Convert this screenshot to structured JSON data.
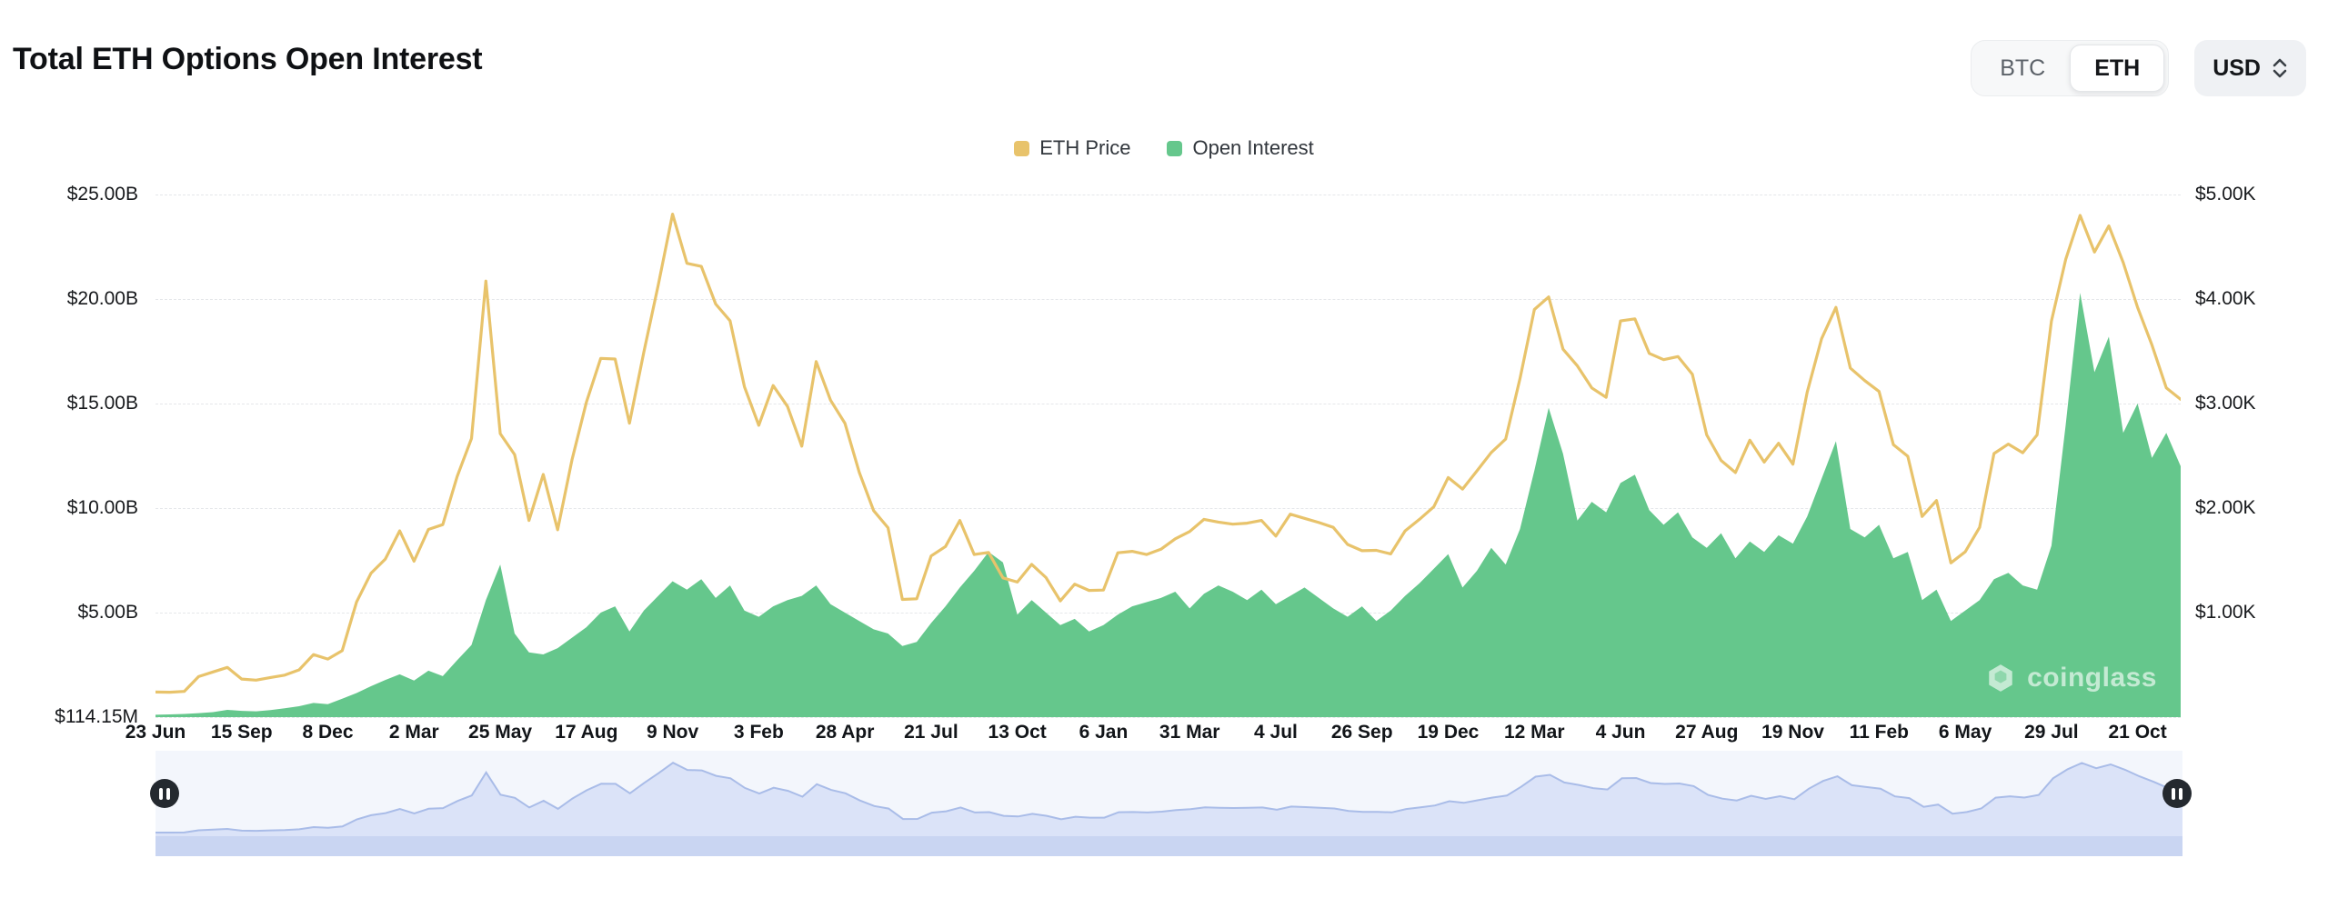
{
  "header": {
    "title": "Total ETH Options Open Interest",
    "coin_toggle": {
      "options": [
        "BTC",
        "ETH"
      ],
      "selected": "ETH"
    },
    "currency": "USD"
  },
  "legend": {
    "items": [
      {
        "label": "ETH Price",
        "color": "#E8C36B"
      },
      {
        "label": "Open Interest",
        "color": "#65C78C"
      }
    ]
  },
  "watermark": "coinglass",
  "icons": {
    "currency_select": "up-down-chevron-icon",
    "navigator_handles": "pause-icon",
    "watermark_logo": "coinglass-hexagon-icon"
  },
  "chart_data": {
    "type": "area+line",
    "title": "Total ETH Options Open Interest",
    "legend_position": "top-center",
    "grid": "horizontal-dashed",
    "x_tick_labels": [
      "23 Jun",
      "15 Sep",
      "8 Dec",
      "2 Mar",
      "25 May",
      "17 Aug",
      "9 Nov",
      "3 Feb",
      "28 Apr",
      "21 Jul",
      "13 Oct",
      "6 Jan",
      "31 Mar",
      "4 Jul",
      "26 Sep",
      "19 Dec",
      "12 Mar",
      "4 Jun",
      "27 Aug",
      "19 Nov",
      "11 Feb",
      "6 May",
      "29 Jul",
      "21 Oct"
    ],
    "x_tick_every_points": 6,
    "x_sampling": "biweekly points from 23 Jun start tick; series extends slightly past final 21 Oct tick",
    "y_axis_left": {
      "name": "Open Interest",
      "ticks": [
        "$25.00B",
        "$20.00B",
        "$15.00B",
        "$10.00B",
        "$5.00B",
        "$114.15M"
      ],
      "axis_min": 0,
      "axis_max": 25,
      "unit": "USD billions"
    },
    "y_axis_right": {
      "name": "ETH Price",
      "ticks": [
        "$5.00K",
        "$4.00K",
        "$3.00K",
        "$2.00K",
        "$1.00K"
      ],
      "axis_min": 0,
      "axis_max": 5000,
      "unit": "USD"
    },
    "series": [
      {
        "name": "Open Interest",
        "type": "area",
        "axis": "left",
        "color": "#65C78C",
        "unit": "USD billions",
        "values": [
          0.114,
          0.13,
          0.15,
          0.19,
          0.24,
          0.35,
          0.3,
          0.28,
          0.34,
          0.42,
          0.52,
          0.68,
          0.62,
          0.88,
          1.15,
          1.48,
          1.78,
          2.05,
          1.75,
          2.22,
          1.96,
          2.72,
          3.45,
          5.6,
          7.3,
          4.0,
          3.1,
          3.0,
          3.3,
          3.8,
          4.3,
          5.0,
          5.3,
          4.1,
          5.1,
          5.8,
          6.5,
          6.1,
          6.6,
          5.7,
          6.3,
          5.1,
          4.8,
          5.3,
          5.6,
          5.8,
          6.3,
          5.4,
          5.0,
          4.6,
          4.2,
          4.0,
          3.4,
          3.6,
          4.5,
          5.3,
          6.2,
          7.0,
          7.9,
          7.4,
          4.9,
          5.6,
          5.0,
          4.4,
          4.7,
          4.1,
          4.4,
          4.9,
          5.3,
          5.5,
          5.7,
          6.0,
          5.2,
          5.9,
          6.3,
          6.0,
          5.6,
          6.1,
          5.4,
          5.8,
          6.2,
          5.7,
          5.2,
          4.8,
          5.3,
          4.6,
          5.1,
          5.8,
          6.4,
          7.1,
          7.8,
          6.2,
          7.0,
          8.1,
          7.3,
          9.0,
          11.8,
          14.8,
          12.6,
          9.4,
          10.3,
          9.8,
          11.2,
          11.6,
          9.9,
          9.2,
          9.8,
          8.6,
          8.1,
          8.8,
          7.6,
          8.4,
          7.9,
          8.7,
          8.3,
          9.6,
          11.4,
          13.2,
          9.0,
          8.6,
          9.2,
          7.6,
          7.9,
          5.6,
          6.1,
          4.6,
          5.1,
          5.6,
          6.6,
          6.9,
          6.3,
          6.1,
          8.2,
          14.0,
          20.3,
          16.5,
          18.2,
          13.6,
          15.0,
          12.4,
          13.6,
          12.0
        ]
      },
      {
        "name": "ETH Price",
        "type": "line",
        "axis": "right",
        "color": "#E8C36B",
        "unit": "USD",
        "values": [
          240,
          238,
          246,
          388,
          432,
          476,
          364,
          354,
          379,
          402,
          452,
          598,
          556,
          636,
          1102,
          1376,
          1512,
          1782,
          1492,
          1796,
          1842,
          2302,
          2666,
          4172,
          2712,
          2512,
          1882,
          2322,
          1792,
          2462,
          3012,
          3432,
          3426,
          2812,
          3492,
          4132,
          4812,
          4342,
          4312,
          3952,
          3792,
          3162,
          2792,
          3172,
          2972,
          2592,
          3402,
          3032,
          2812,
          2342,
          1976,
          1812,
          1126,
          1132,
          1542,
          1632,
          1882,
          1556,
          1576,
          1332,
          1292,
          1462,
          1336,
          1112,
          1272,
          1212,
          1216,
          1572,
          1586,
          1556,
          1606,
          1706,
          1776,
          1892,
          1866,
          1846,
          1856,
          1882,
          1732,
          1942,
          1902,
          1862,
          1816,
          1652,
          1592,
          1596,
          1562,
          1782,
          1892,
          2012,
          2292,
          2182,
          2356,
          2532,
          2660,
          3240,
          3900,
          4020,
          3520,
          3360,
          3150,
          3060,
          3790,
          3810,
          3480,
          3420,
          3450,
          3280,
          2700,
          2456,
          2340,
          2650,
          2440,
          2620,
          2420,
          3110,
          3620,
          3920,
          3340,
          3220,
          3116,
          2606,
          2496,
          1920,
          2072,
          1476,
          1582,
          1816,
          2522,
          2612,
          2530,
          2700,
          3790,
          4380,
          4800,
          4450,
          4700,
          4350,
          3920,
          3560,
          3150,
          3040
        ]
      }
    ]
  }
}
